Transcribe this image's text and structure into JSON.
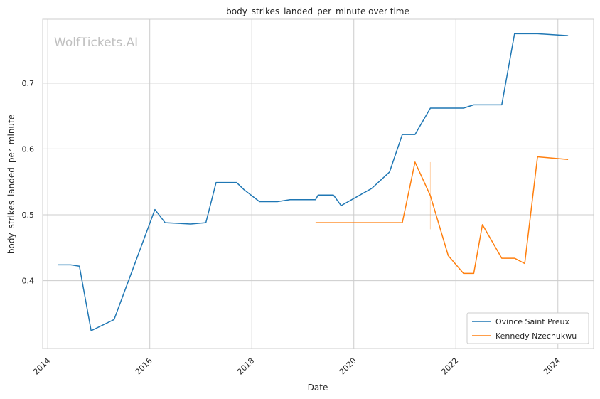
{
  "chart_data": {
    "type": "line",
    "title": "body_strikes_landed_per_minute over time",
    "xlabel": "Date",
    "ylabel": "body_strikes_landed_per_minute",
    "watermark": "WolfTickets.AI",
    "xlim": [
      2013.9,
      2024.7
    ],
    "ylim": [
      0.297,
      0.797
    ],
    "x_ticks": [
      2014,
      2016,
      2018,
      2020,
      2022,
      2024
    ],
    "y_ticks": [
      0.4,
      0.5,
      0.6,
      0.7
    ],
    "grid": true,
    "legend_position": "lower right",
    "series": [
      {
        "name": "Ovince Saint Preux",
        "color": "#1f77b4",
        "points": [
          [
            2014.2,
            0.424
          ],
          [
            2014.45,
            0.424
          ],
          [
            2014.62,
            0.422
          ],
          [
            2014.85,
            0.324
          ],
          [
            2015.3,
            0.341
          ],
          [
            2016.1,
            0.508
          ],
          [
            2016.3,
            0.488
          ],
          [
            2016.8,
            0.486
          ],
          [
            2017.1,
            0.488
          ],
          [
            2017.3,
            0.549
          ],
          [
            2017.7,
            0.549
          ],
          [
            2017.85,
            0.538
          ],
          [
            2018.15,
            0.52
          ],
          [
            2018.5,
            0.52
          ],
          [
            2018.75,
            0.523
          ],
          [
            2019.25,
            0.523
          ],
          [
            2019.3,
            0.53
          ],
          [
            2019.6,
            0.53
          ],
          [
            2019.75,
            0.514
          ],
          [
            2020.35,
            0.54
          ],
          [
            2020.7,
            0.565
          ],
          [
            2020.95,
            0.622
          ],
          [
            2021.2,
            0.622
          ],
          [
            2021.5,
            0.662
          ],
          [
            2022.15,
            0.662
          ],
          [
            2022.35,
            0.667
          ],
          [
            2022.9,
            0.667
          ],
          [
            2023.15,
            0.775
          ],
          [
            2023.6,
            0.775
          ],
          [
            2024.2,
            0.772
          ]
        ]
      },
      {
        "name": "Kennedy Nzechukwu",
        "color": "#ff7f0e",
        "points": [
          [
            2019.25,
            0.488
          ],
          [
            2020.95,
            0.488
          ],
          [
            2021.2,
            0.58
          ],
          [
            2021.5,
            0.529
          ],
          [
            2021.85,
            0.438
          ],
          [
            2022.15,
            0.411
          ],
          [
            2022.35,
            0.411
          ],
          [
            2022.52,
            0.485
          ],
          [
            2022.9,
            0.434
          ],
          [
            2023.15,
            0.434
          ],
          [
            2023.35,
            0.426
          ],
          [
            2023.6,
            0.588
          ],
          [
            2024.2,
            0.584
          ]
        ],
        "error_bars": [
          {
            "x": 2021.5,
            "low": 0.478,
            "high": 0.58
          }
        ]
      }
    ]
  }
}
